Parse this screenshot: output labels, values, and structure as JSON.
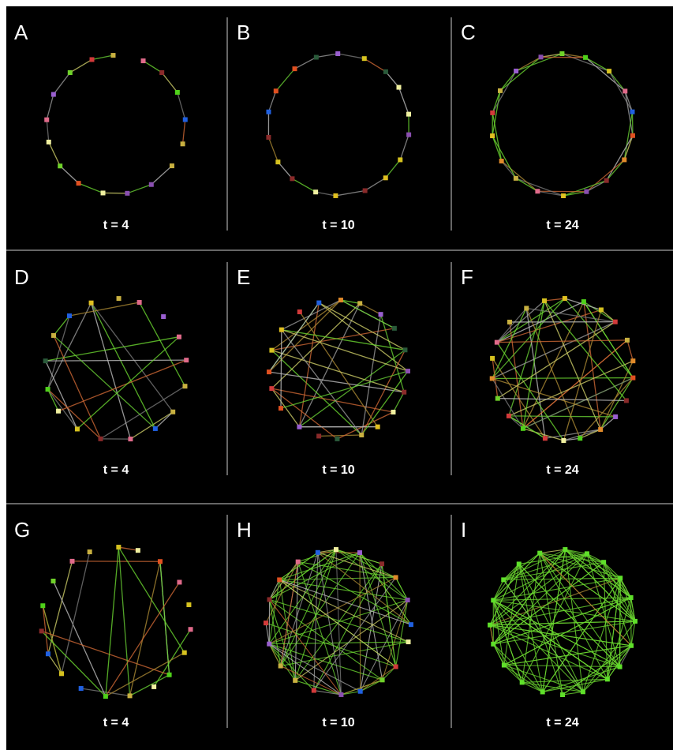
{
  "panels": [
    {
      "label": "A",
      "caption": "t = 4"
    },
    {
      "label": "B",
      "caption": "t = 10"
    },
    {
      "label": "C",
      "caption": "t = 24"
    },
    {
      "label": "D",
      "caption": "t = 4"
    },
    {
      "label": "E",
      "caption": "t = 10"
    },
    {
      "label": "F",
      "caption": "t = 24"
    },
    {
      "label": "G",
      "caption": "t = 4"
    },
    {
      "label": "H",
      "caption": "t = 10"
    },
    {
      "label": "I",
      "caption": "t = 24"
    }
  ]
}
